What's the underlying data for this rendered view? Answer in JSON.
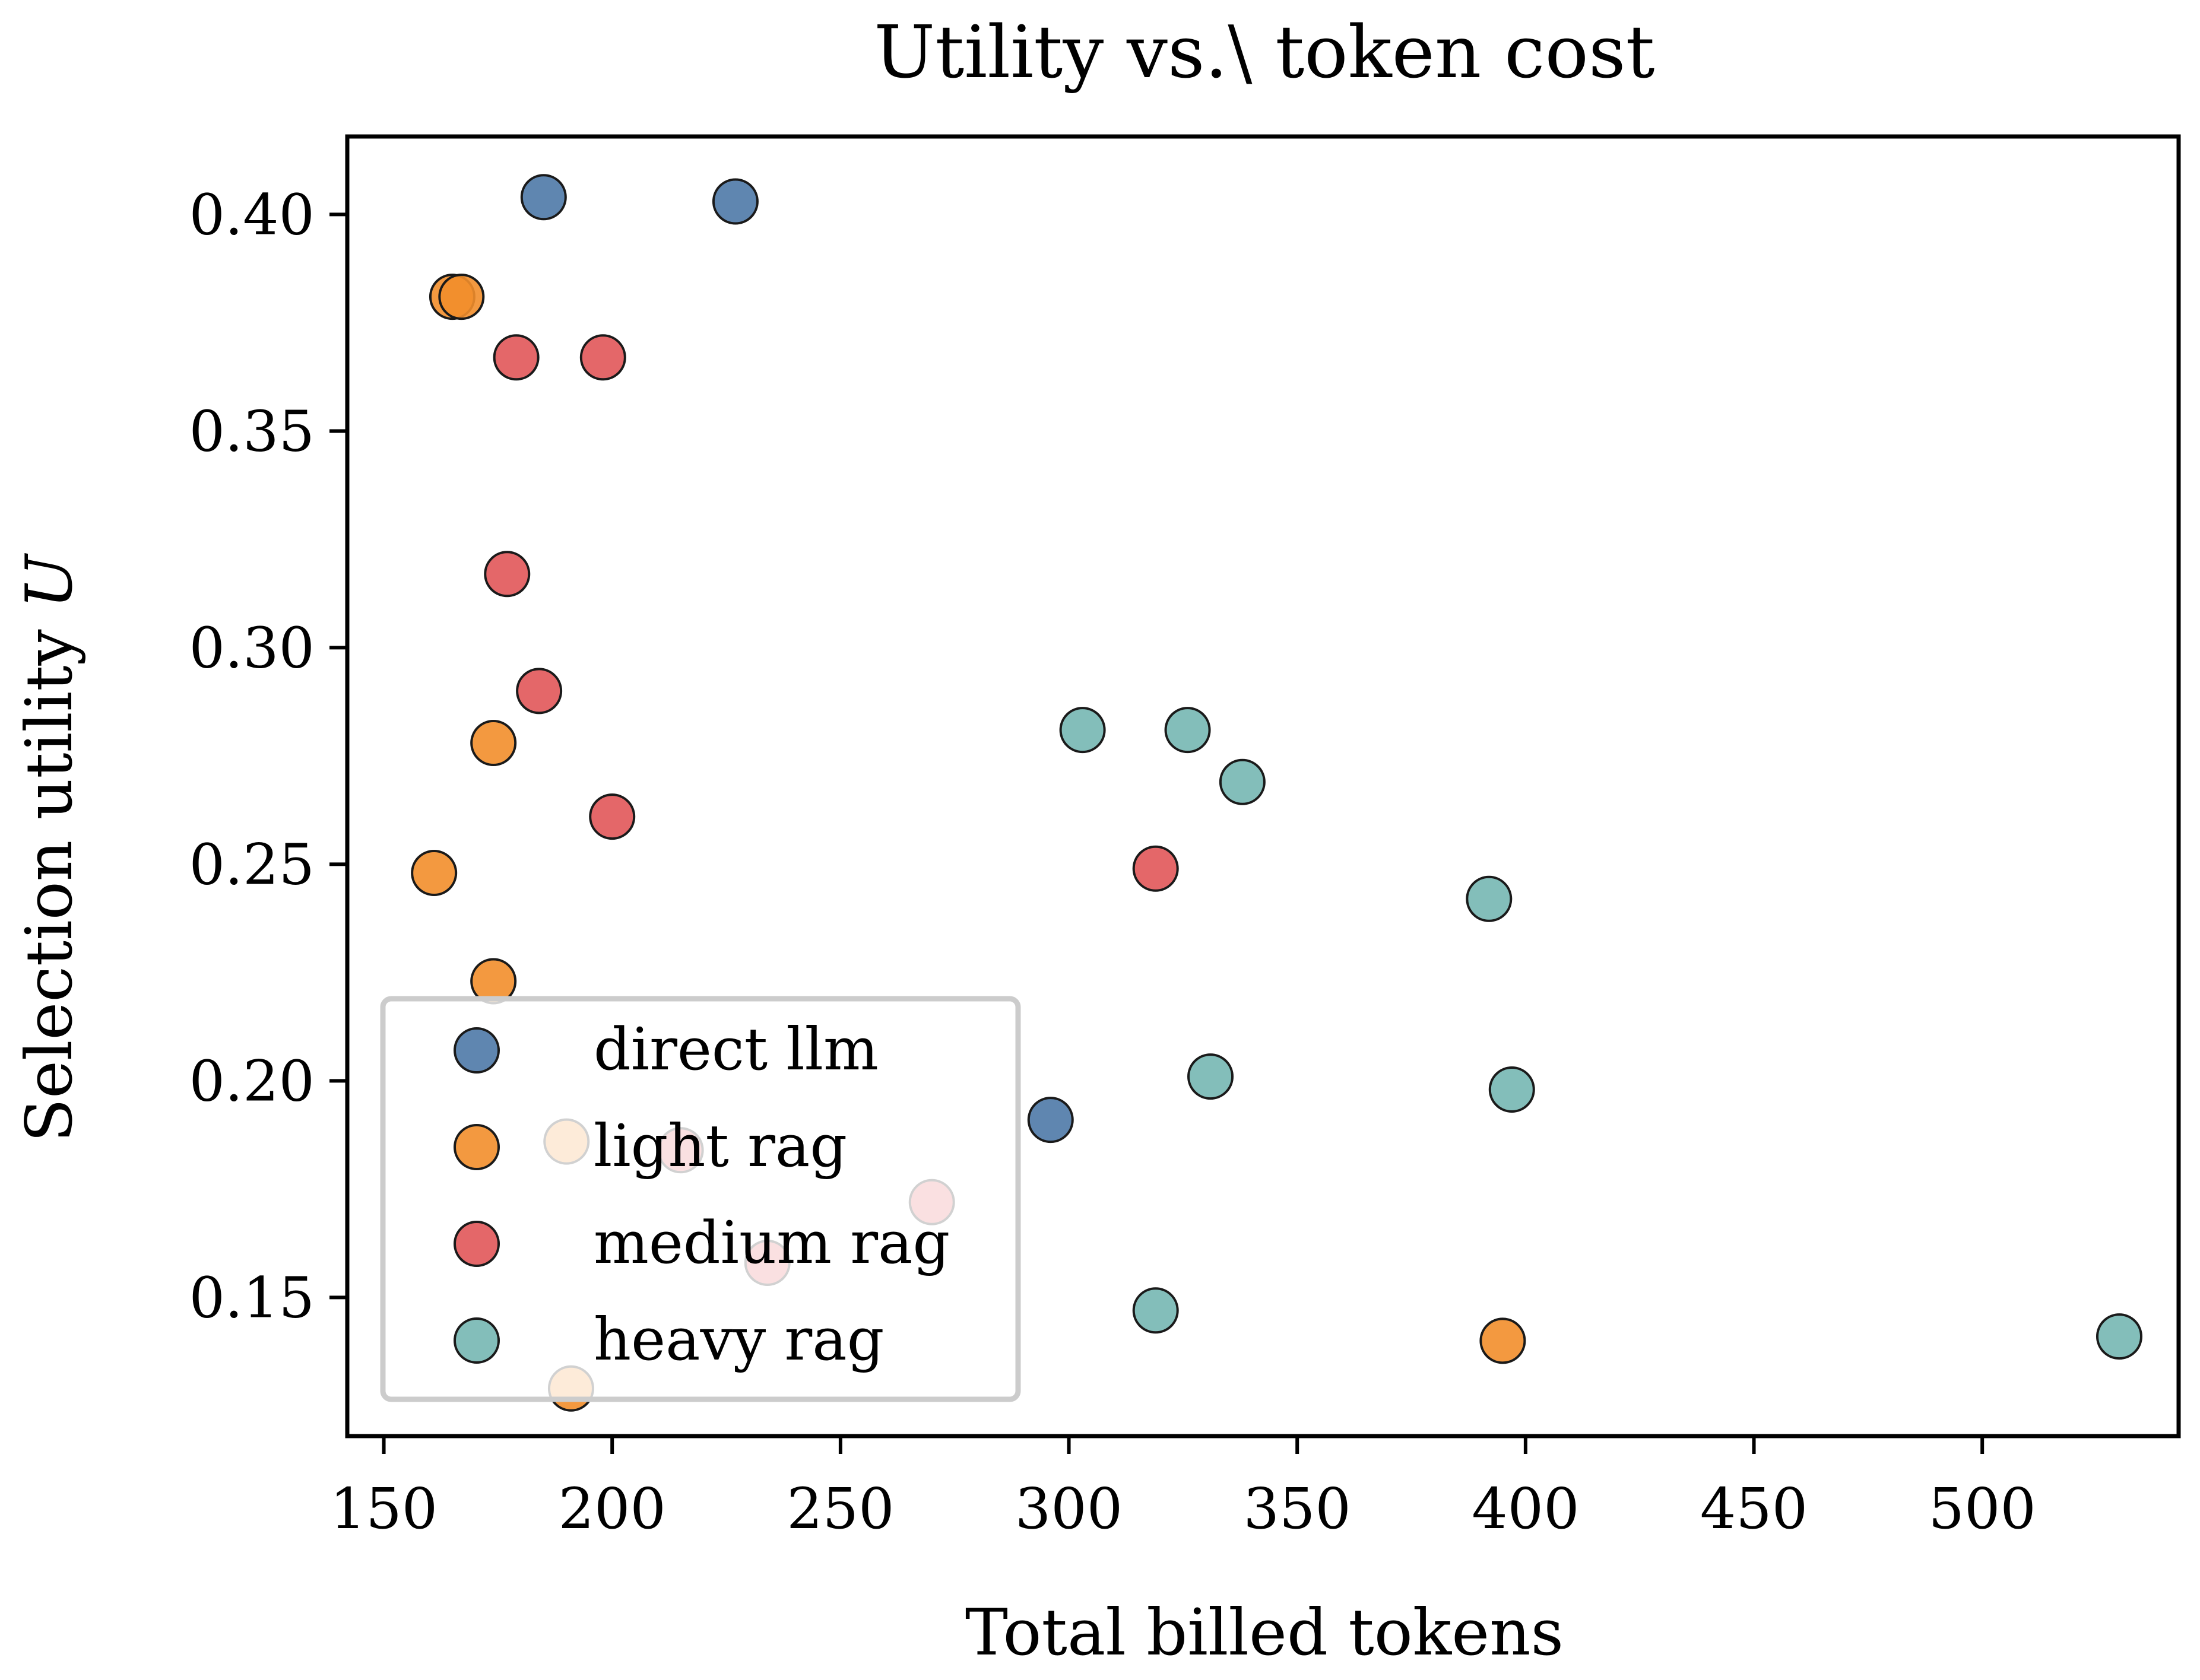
{
  "chart_data": {
    "type": "scatter",
    "title": "Utility vs.\\ token cost",
    "xlabel": "Total billed tokens",
    "ylabel_text": "Selection utility",
    "ylabel_symbol": "U",
    "xlim": [
      142,
      543
    ],
    "ylim": [
      0.118,
      0.418
    ],
    "xticks": [
      150,
      200,
      250,
      300,
      350,
      400,
      450,
      500
    ],
    "xtick_labels": [
      "150",
      "200",
      "250",
      "300",
      "350",
      "400",
      "450",
      "500"
    ],
    "yticks": [
      0.15,
      0.2,
      0.25,
      0.3,
      0.35,
      0.4
    ],
    "ytick_labels": [
      "0.15",
      "0.20",
      "0.25",
      "0.30",
      "0.35",
      "0.40"
    ],
    "legend_position": "lower-left",
    "grid": false,
    "series": [
      {
        "name": "direct llm",
        "color": "#4e79a7",
        "points": [
          [
            185,
            0.404
          ],
          [
            227,
            0.403
          ],
          [
            296,
            0.191
          ]
        ]
      },
      {
        "name": "light rag",
        "color": "#f28e2b",
        "points": [
          [
            165,
            0.381
          ],
          [
            167,
            0.381
          ],
          [
            174,
            0.278
          ],
          [
            161,
            0.248
          ],
          [
            174,
            0.223
          ],
          [
            190,
            0.186
          ],
          [
            191,
            0.129
          ],
          [
            395,
            0.14
          ]
        ]
      },
      {
        "name": "medium rag",
        "color": "#e15759",
        "points": [
          [
            179,
            0.367
          ],
          [
            198,
            0.367
          ],
          [
            177,
            0.317
          ],
          [
            184,
            0.29
          ],
          [
            200,
            0.261
          ],
          [
            319,
            0.249
          ],
          [
            215,
            0.184
          ],
          [
            270,
            0.172
          ],
          [
            234,
            0.158
          ]
        ]
      },
      {
        "name": "heavy rag",
        "color": "#76b7b2",
        "points": [
          [
            303,
            0.281
          ],
          [
            326,
            0.281
          ],
          [
            338,
            0.269
          ],
          [
            392,
            0.242
          ],
          [
            331,
            0.201
          ],
          [
            397,
            0.198
          ],
          [
            319,
            0.147
          ],
          [
            530,
            0.141
          ]
        ]
      }
    ]
  }
}
